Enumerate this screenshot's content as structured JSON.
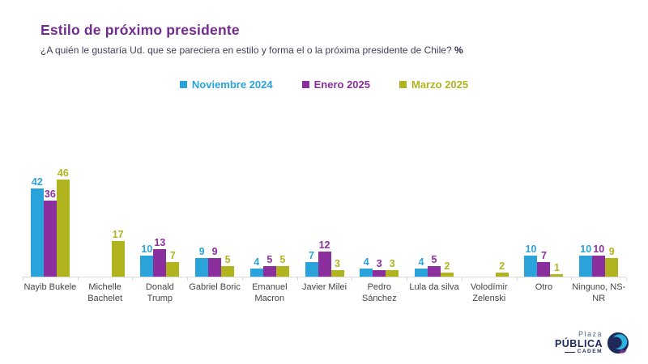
{
  "title": "Estilo de próximo presidente",
  "subtitle": {
    "text": "¿A quién le gustaría Ud. que se pareciera en estilo y forma el o la próxima presidente de Chile?",
    "suffix": "%"
  },
  "colors": {
    "title": "#722B8E",
    "axis": "#D9D9D9",
    "category_label": "#444444",
    "series_blue": "#29A3D9",
    "series_purple": "#8B2F9E",
    "series_olive": "#B0B41F"
  },
  "chart_data": {
    "type": "bar",
    "title": "Estilo de próximo presidente",
    "categories": [
      "Nayib Bukele",
      "Michelle\nBachelet",
      "Donald\nTrump",
      "Gabriel Boric",
      "Emanuel\nMacron",
      "Javier Milei",
      "Pedro\nSánchez",
      "Lula da silva",
      "Volodímir\nZelenski",
      "Otro",
      "Ninguno, NS-\nNR"
    ],
    "series": [
      {
        "name": "Noviembre 2024",
        "color": "#29A3D9",
        "values": [
          42,
          null,
          10,
          9,
          4,
          7,
          4,
          4,
          null,
          10,
          10
        ]
      },
      {
        "name": "Enero 2025",
        "color": "#8B2F9E",
        "values": [
          36,
          null,
          13,
          9,
          5,
          12,
          3,
          5,
          null,
          7,
          10
        ]
      },
      {
        "name": "Marzo 2025",
        "color": "#B0B41F",
        "values": [
          46,
          17,
          7,
          5,
          5,
          3,
          3,
          2,
          2,
          1,
          9
        ]
      }
    ],
    "ylim": [
      0,
      50
    ],
    "grid": false,
    "legend_position": "top",
    "value_labels": true
  },
  "logo": {
    "plaza": "Plaza",
    "publica": "PÚBLICA",
    "cadem": "CADEM"
  }
}
